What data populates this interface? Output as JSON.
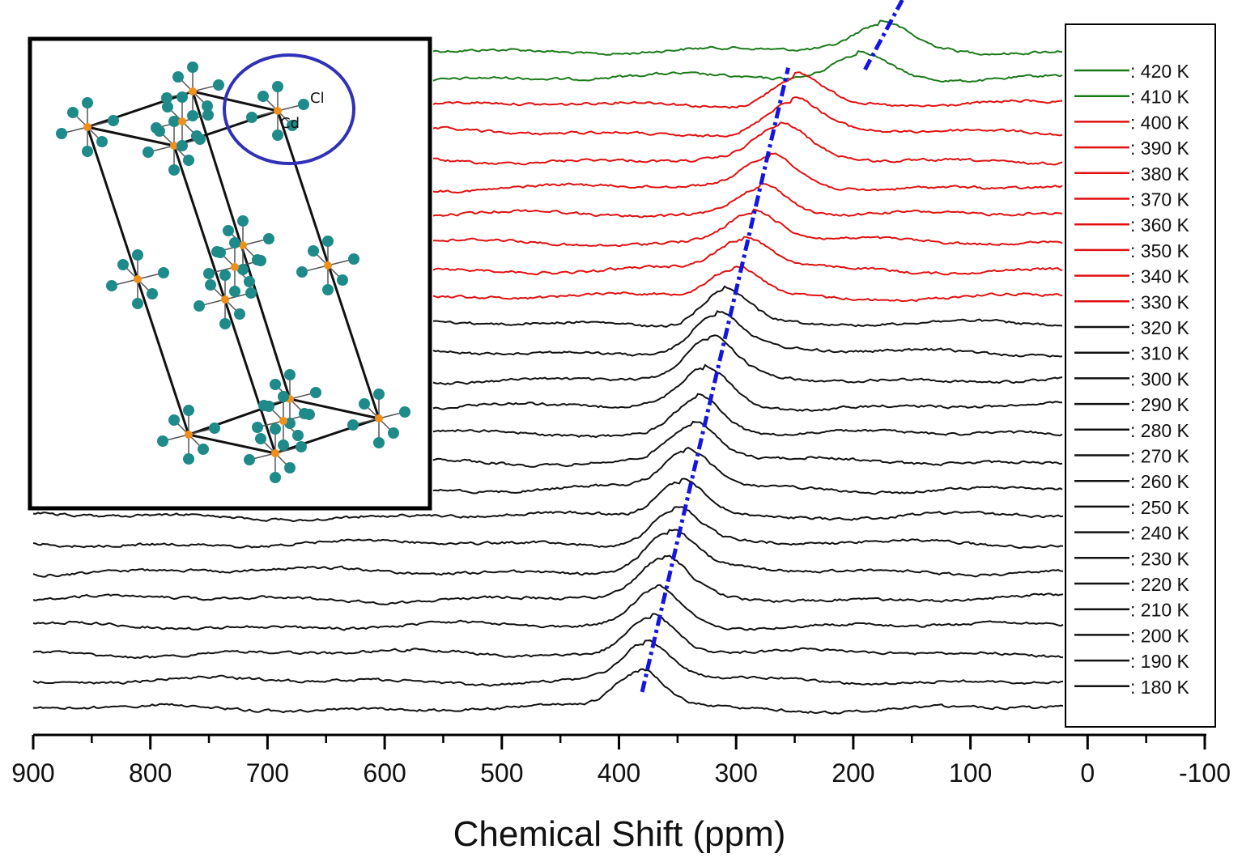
{
  "chart_data": {
    "type": "line",
    "title": "",
    "xlabel": "Chemical Shift (ppm)",
    "ylabel": "",
    "xlim": [
      900,
      -100
    ],
    "x_ticks": [
      "900",
      "800",
      "700",
      "600",
      "500",
      "400",
      "300",
      "200",
      "100",
      "0",
      "-100"
    ],
    "x_tick_values": [
      900,
      800,
      700,
      600,
      500,
      400,
      300,
      200,
      100,
      0,
      -100
    ],
    "trend_line": {
      "start_ppm": 383,
      "end_ppm": 172,
      "color": "#1515e0",
      "style": "dash-dot"
    },
    "colors": {
      "low_temp": "#111111",
      "mid_temp": "#e01010",
      "high_temp": "#1a7a1a",
      "marker": "#1515e0"
    },
    "series": [
      {
        "name": "420 K",
        "legend": ": 420 K",
        "temperature_K": 420,
        "peak_ppm": 178,
        "color": "#1a7a1a"
      },
      {
        "name": "410 K",
        "legend": ": 410 K",
        "temperature_K": 410,
        "peak_ppm": 196,
        "color": "#1a7a1a"
      },
      {
        "name": "400 K",
        "legend": ": 400 K",
        "temperature_K": 400,
        "peak_ppm": 250,
        "color": "#e01010"
      },
      {
        "name": "390 K",
        "legend": ": 390 K",
        "temperature_K": 390,
        "peak_ppm": 253,
        "color": "#e01010"
      },
      {
        "name": "380 K",
        "legend": ": 380 K",
        "temperature_K": 380,
        "peak_ppm": 263,
        "color": "#e01010"
      },
      {
        "name": "370 K",
        "legend": ": 370 K",
        "temperature_K": 370,
        "peak_ppm": 271,
        "color": "#e01010"
      },
      {
        "name": "360 K",
        "legend": ": 360 K",
        "temperature_K": 360,
        "peak_ppm": 279,
        "color": "#e01010"
      },
      {
        "name": "350 K",
        "legend": ": 350 K",
        "temperature_K": 350,
        "peak_ppm": 287,
        "color": "#e01010"
      },
      {
        "name": "340 K",
        "legend": ": 340 K",
        "temperature_K": 340,
        "peak_ppm": 295,
        "color": "#e01010"
      },
      {
        "name": "330 K",
        "legend": ": 330 K",
        "temperature_K": 330,
        "peak_ppm": 303,
        "color": "#e01010"
      },
      {
        "name": "320 K",
        "legend": ": 320 K",
        "temperature_K": 320,
        "peak_ppm": 311,
        "color": "#111111"
      },
      {
        "name": "310 K",
        "legend": ": 310 K",
        "temperature_K": 310,
        "peak_ppm": 318,
        "color": "#111111"
      },
      {
        "name": "300 K",
        "legend": ": 300 K",
        "temperature_K": 300,
        "peak_ppm": 323,
        "color": "#111111"
      },
      {
        "name": "290 K",
        "legend": ": 290 K",
        "temperature_K": 290,
        "peak_ppm": 328,
        "color": "#111111"
      },
      {
        "name": "280 K",
        "legend": ": 280 K",
        "temperature_K": 280,
        "peak_ppm": 333,
        "color": "#111111"
      },
      {
        "name": "270 K",
        "legend": ": 270 K",
        "temperature_K": 270,
        "peak_ppm": 338,
        "color": "#111111"
      },
      {
        "name": "260 K",
        "legend": ": 260 K",
        "temperature_K": 260,
        "peak_ppm": 343,
        "color": "#111111"
      },
      {
        "name": "250 K",
        "legend": ": 250 K",
        "temperature_K": 250,
        "peak_ppm": 348,
        "color": "#111111"
      },
      {
        "name": "240 K",
        "legend": ": 240 K",
        "temperature_K": 240,
        "peak_ppm": 353,
        "color": "#111111"
      },
      {
        "name": "230 K",
        "legend": ": 230 K",
        "temperature_K": 230,
        "peak_ppm": 358,
        "color": "#111111"
      },
      {
        "name": "220 K",
        "legend": ": 220 K",
        "temperature_K": 220,
        "peak_ppm": 363,
        "color": "#111111"
      },
      {
        "name": "210 K",
        "legend": ": 210 K",
        "temperature_K": 210,
        "peak_ppm": 368,
        "color": "#111111"
      },
      {
        "name": "200 K",
        "legend": ": 200 K",
        "temperature_K": 200,
        "peak_ppm": 373,
        "color": "#111111"
      },
      {
        "name": "190 K",
        "legend": ": 190 K",
        "temperature_K": 190,
        "peak_ppm": 378,
        "color": "#111111"
      },
      {
        "name": "180 K",
        "legend": ": 180 K",
        "temperature_K": 180,
        "peak_ppm": 383,
        "color": "#111111"
      }
    ],
    "inset": {
      "description_labels": {
        "chlorine": "Cl",
        "cadmium": "Cd"
      },
      "atom_colors": {
        "cl": "#1e8a8a",
        "cd": "#f0901a",
        "highlight": "#3030b8"
      }
    },
    "legend_position": "right"
  }
}
